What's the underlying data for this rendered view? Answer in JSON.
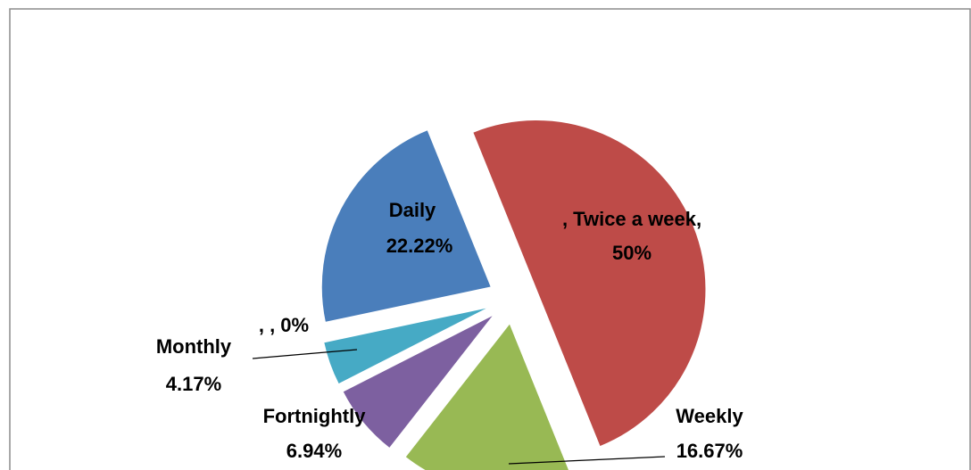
{
  "chart_data": {
    "type": "pie",
    "categories": [
      "Daily",
      ", Twice a week,",
      "Weekly",
      "Fortnightly",
      "Monthly",
      ", ,"
    ],
    "values": [
      22.22,
      50,
      16.67,
      6.94,
      4.17,
      0
    ],
    "value_labels": [
      "22.22%",
      "50%",
      "16.67%",
      "6.94%",
      "4.17%",
      "0%"
    ],
    "colors": [
      "#4a7ebb",
      "#be4b48",
      "#98b954",
      "#7d60a0",
      "#46aac5",
      "#9bbb59"
    ],
    "exploded": true
  }
}
